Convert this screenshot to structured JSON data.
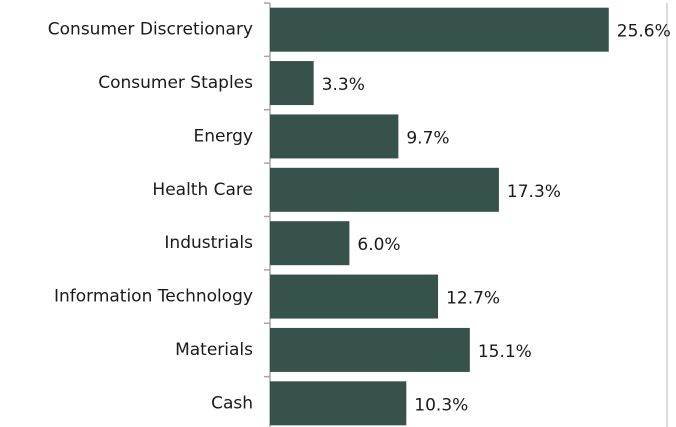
{
  "chart_data": {
    "type": "bar",
    "orientation": "horizontal",
    "categories": [
      "Consumer Discretionary",
      "Consumer Staples",
      "Energy",
      "Health Care",
      "Industrials",
      "Information Technology",
      "Materials",
      "Cash"
    ],
    "values": [
      25.6,
      3.3,
      9.7,
      17.3,
      6.0,
      12.7,
      15.1,
      10.3
    ],
    "value_labels": [
      "25.6%",
      "3.3%",
      "9.7%",
      "17.3%",
      "6.0%",
      "12.7%",
      "15.1%",
      "10.3%"
    ],
    "color": "#36524a",
    "xlim": [
      0,
      30
    ]
  }
}
